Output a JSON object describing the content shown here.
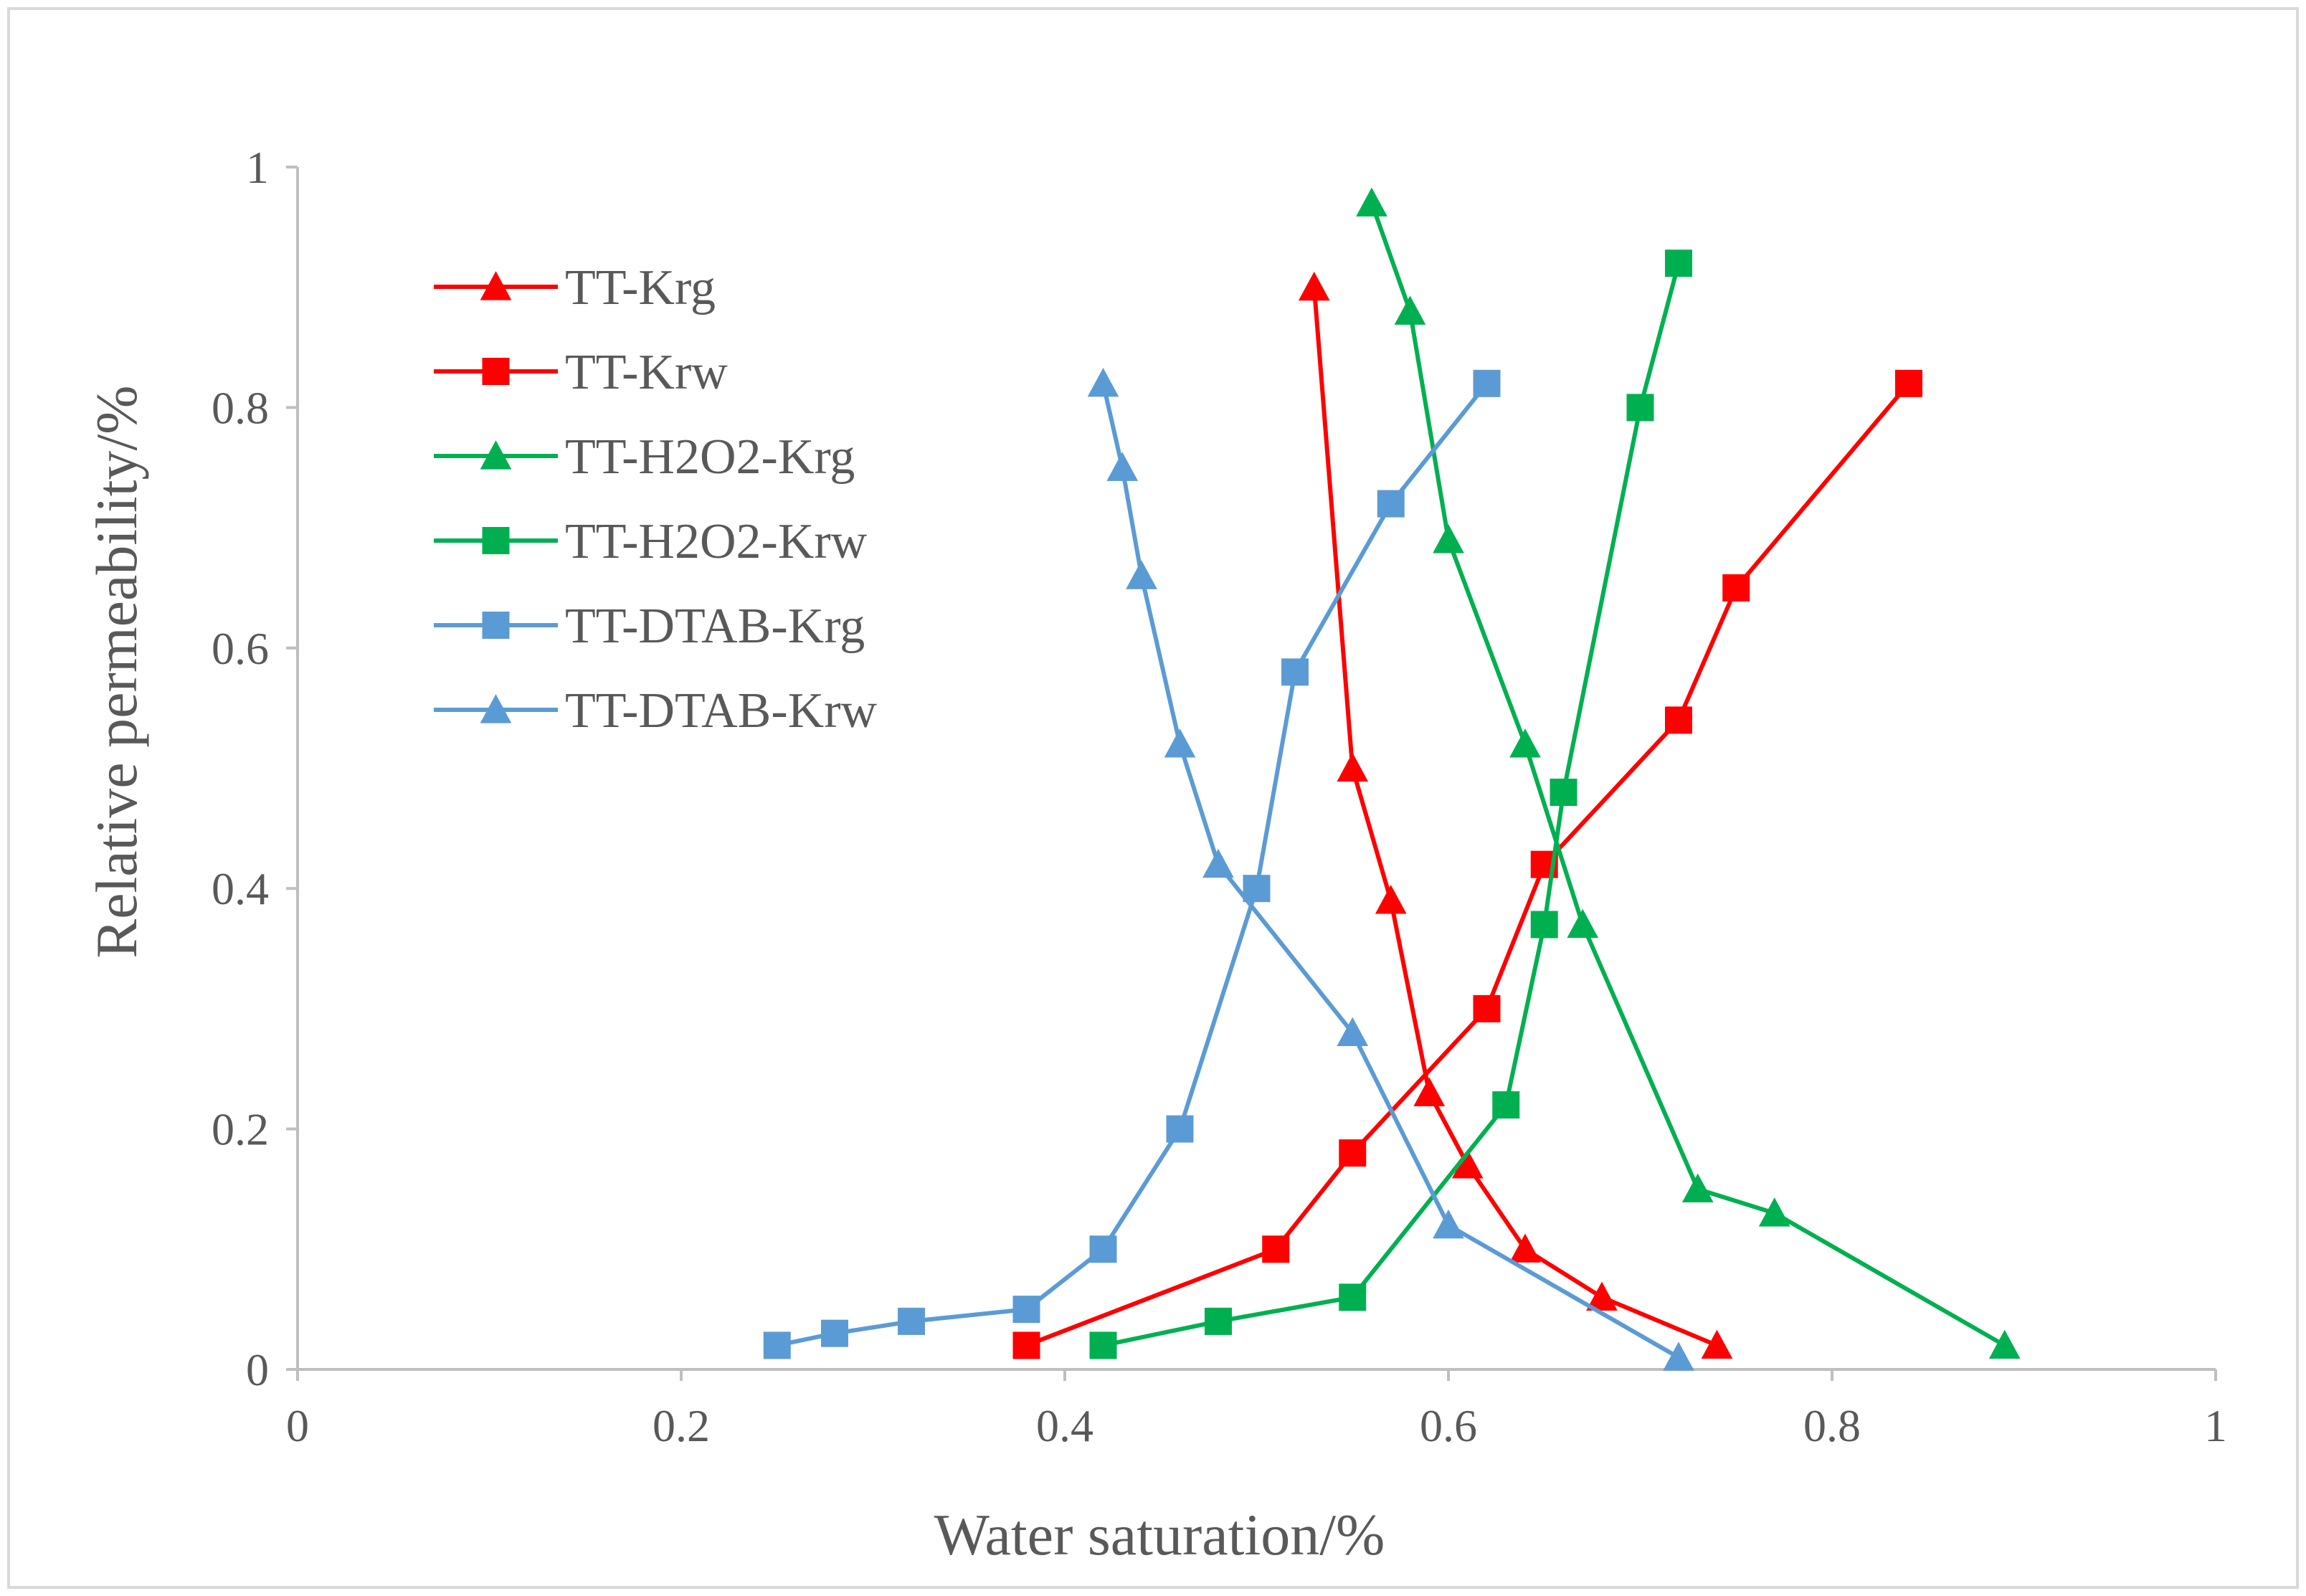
{
  "chart_data": {
    "type": "line",
    "title": "",
    "xlabel": "Water saturation/%",
    "ylabel": "Relative permeability/%",
    "xlim": [
      0,
      1
    ],
    "ylim": [
      0,
      1
    ],
    "x_ticks": [
      0,
      0.2,
      0.4,
      0.6,
      0.8,
      1
    ],
    "x_tick_labels": [
      "0",
      "0.2",
      "0.4",
      "0.6",
      "0.8",
      "1"
    ],
    "y_ticks": [
      0,
      0.2,
      0.4,
      0.6,
      0.8,
      1
    ],
    "y_tick_labels": [
      "0",
      "0.2",
      "0.4",
      "0.6",
      "0.8",
      "1"
    ],
    "grid": false,
    "legend_position": "top-left",
    "series": [
      {
        "name": "TT-Krg",
        "color": "#ff0000",
        "marker": "triangle",
        "x": [
          0.53,
          0.55,
          0.57,
          0.59,
          0.61,
          0.64,
          0.68,
          0.74
        ],
        "y": [
          0.9,
          0.5,
          0.39,
          0.23,
          0.17,
          0.1,
          0.06,
          0.02
        ]
      },
      {
        "name": "TT-Krw",
        "color": "#ff0000",
        "marker": "square",
        "x": [
          0.38,
          0.51,
          0.55,
          0.62,
          0.65,
          0.72,
          0.75,
          0.84
        ],
        "y": [
          0.02,
          0.1,
          0.18,
          0.3,
          0.42,
          0.54,
          0.65,
          0.82
        ]
      },
      {
        "name": "TT-H2O2-Krg",
        "color": "#00b050",
        "marker": "triangle",
        "x": [
          0.56,
          0.58,
          0.6,
          0.64,
          0.67,
          0.73,
          0.77,
          0.89
        ],
        "y": [
          0.97,
          0.88,
          0.69,
          0.52,
          0.37,
          0.15,
          0.13,
          0.02
        ]
      },
      {
        "name": "TT-H2O2-Krw",
        "color": "#00b050",
        "marker": "square",
        "x": [
          0.42,
          0.48,
          0.55,
          0.63,
          0.65,
          0.66,
          0.7,
          0.72
        ],
        "y": [
          0.02,
          0.04,
          0.06,
          0.22,
          0.37,
          0.48,
          0.8,
          0.92
        ]
      },
      {
        "name": "TT-DTAB-Krg",
        "color": "#5b9bd5",
        "marker": "square",
        "x": [
          0.25,
          0.28,
          0.32,
          0.38,
          0.42,
          0.46,
          0.5,
          0.52,
          0.57,
          0.62
        ],
        "y": [
          0.02,
          0.03,
          0.04,
          0.05,
          0.1,
          0.2,
          0.4,
          0.58,
          0.72,
          0.82
        ]
      },
      {
        "name": "TT-DTAB-Krw",
        "color": "#5b9bd5",
        "marker": "triangle",
        "x": [
          0.42,
          0.43,
          0.44,
          0.46,
          0.48,
          0.55,
          0.6,
          0.72
        ],
        "y": [
          0.82,
          0.75,
          0.66,
          0.52,
          0.42,
          0.28,
          0.12,
          0.01
        ]
      }
    ]
  },
  "colors": {
    "axis": "#bfbfbf",
    "frame": "#d9d9d9",
    "text": "#595959"
  }
}
